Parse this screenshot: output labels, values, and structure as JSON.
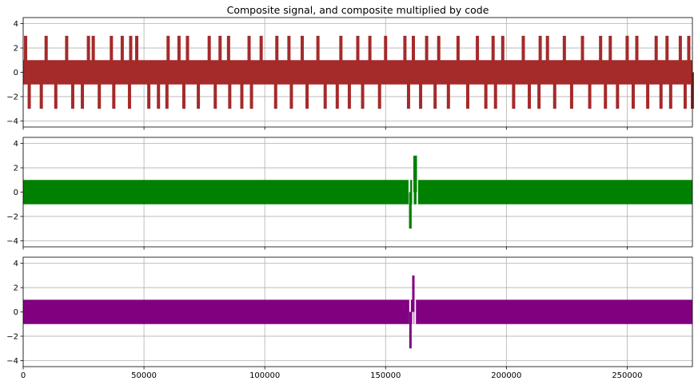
{
  "chart_data": [
    {
      "type": "line",
      "title": "Composite signal, and composite multiplied by code",
      "color": "#a52a2a",
      "ylim": [
        -4.5,
        4.5
      ],
      "xlim": [
        0,
        277000
      ],
      "yticks": [
        -4,
        -2,
        0,
        2,
        4
      ],
      "ytick_labels": [
        "−4",
        "−2",
        "0",
        "2",
        "4"
      ],
      "grid": true,
      "band_levels": [
        -1,
        1
      ],
      "spike_levels": [
        -3,
        3
      ],
      "spike_up_x": [
        1000,
        9500,
        18000,
        27000,
        29000,
        36500,
        41000,
        44500,
        47000,
        60000,
        64500,
        68000,
        77000,
        81500,
        85000,
        93500,
        98500,
        105000,
        110000,
        115500,
        122000,
        131500,
        138500,
        143500,
        150000,
        158000,
        161500,
        167000,
        172000,
        180000,
        188000,
        194500,
        198500,
        207000,
        214000,
        217000,
        224000,
        231500,
        239000,
        243000,
        250000,
        254000,
        262000,
        266500,
        272000,
        275500
      ],
      "spike_down_x": [
        2500,
        7500,
        13500,
        20500,
        24500,
        31500,
        37500,
        44000,
        52000,
        56000,
        59500,
        66500,
        72500,
        79500,
        85500,
        90500,
        94500,
        104500,
        111000,
        117500,
        125000,
        130000,
        135000,
        140500,
        147500,
        159500,
        164500,
        170500,
        176000,
        184000,
        191500,
        195500,
        203000,
        209500,
        213500,
        220000,
        227000,
        234500,
        241000,
        246000,
        252500,
        258500,
        264000,
        268000,
        274000,
        277000
      ]
    },
    {
      "type": "line",
      "color": "#008000",
      "ylim": [
        -4.5,
        4.5
      ],
      "xlim": [
        0,
        277000
      ],
      "yticks": [
        -4,
        -2,
        0,
        2,
        4
      ],
      "ytick_labels": [
        "−4",
        "−2",
        "0",
        "2",
        "4"
      ],
      "grid": true,
      "band_levels": [
        -1,
        1
      ],
      "gaps": [
        [
          159500,
          160200
        ],
        [
          161000,
          161400
        ],
        [
          162800,
          163300
        ]
      ],
      "spikes": [
        {
          "x0": 159700,
          "x1": 160800,
          "low": -3,
          "high": 0
        },
        {
          "x0": 161500,
          "x1": 163000,
          "low": 0,
          "high": 3
        }
      ]
    },
    {
      "type": "line",
      "color": "#800080",
      "ylim": [
        -4.5,
        4.5
      ],
      "xlim": [
        0,
        277000
      ],
      "yticks": [
        -4,
        -2,
        0,
        2,
        4
      ],
      "ytick_labels": [
        "−4",
        "−2",
        "0",
        "2",
        "4"
      ],
      "xticks": [
        0,
        50000,
        100000,
        150000,
        200000,
        250000
      ],
      "xtick_labels": [
        "0",
        "50000",
        "100000",
        "150000",
        "200000",
        "250000"
      ],
      "grid": true,
      "band_levels": [
        -1,
        1
      ],
      "gaps": [
        [
          159800,
          160300
        ],
        [
          161000,
          161300
        ],
        [
          161900,
          162300
        ]
      ],
      "spikes": [
        {
          "x0": 159800,
          "x1": 160600,
          "low": -3,
          "high": 0
        },
        {
          "x0": 161000,
          "x1": 161800,
          "low": 0,
          "high": 3
        }
      ]
    }
  ]
}
